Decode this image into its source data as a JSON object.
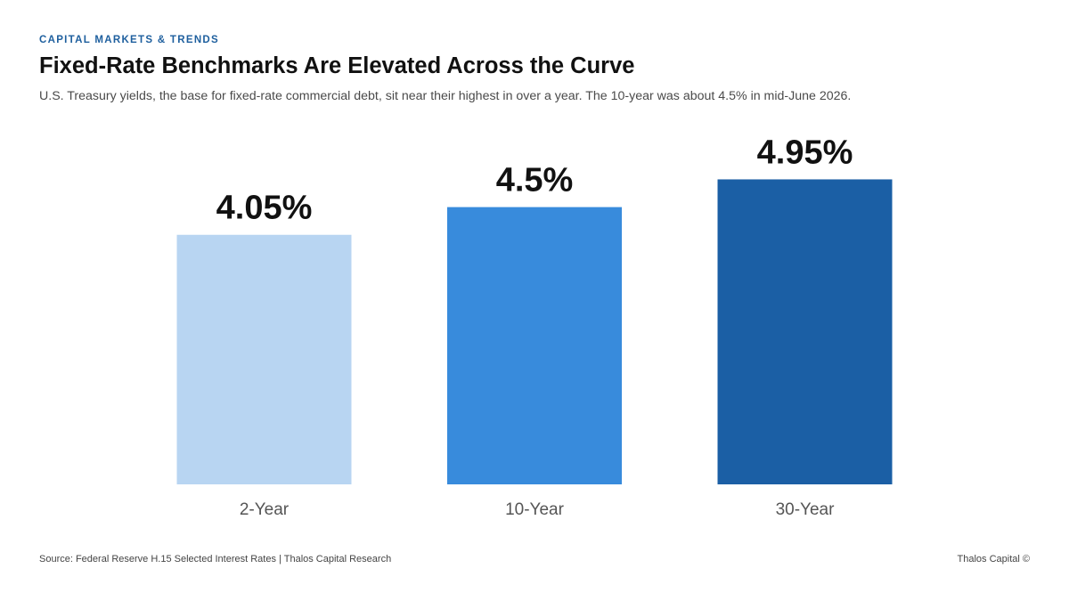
{
  "header": {
    "eyebrow": "CAPITAL MARKETS & TRENDS",
    "title": "Fixed-Rate Benchmarks Are Elevated Across the Curve",
    "subtitle": "U.S. Treasury yields, the base for fixed-rate commercial debt, sit near their highest in over a year. The 10-year was about 4.5% in mid-June 2026."
  },
  "chart_data": {
    "type": "bar",
    "categories": [
      "2-Year",
      "10-Year",
      "30-Year"
    ],
    "values": [
      4.05,
      4.5,
      4.95
    ],
    "data_labels": [
      "4.05%",
      "4.5%",
      "4.95%"
    ],
    "colors": [
      "#b8d5f2",
      "#388bdc",
      "#1b5fa5"
    ],
    "value_label_color": "#111111",
    "category_label_color": "#555555",
    "grid": false,
    "legend": "none"
  },
  "footer": {
    "source": "Source: Federal Reserve H.15 Selected Interest Rates | Thalos Capital Research",
    "credit": "Thalos Capital ©"
  }
}
